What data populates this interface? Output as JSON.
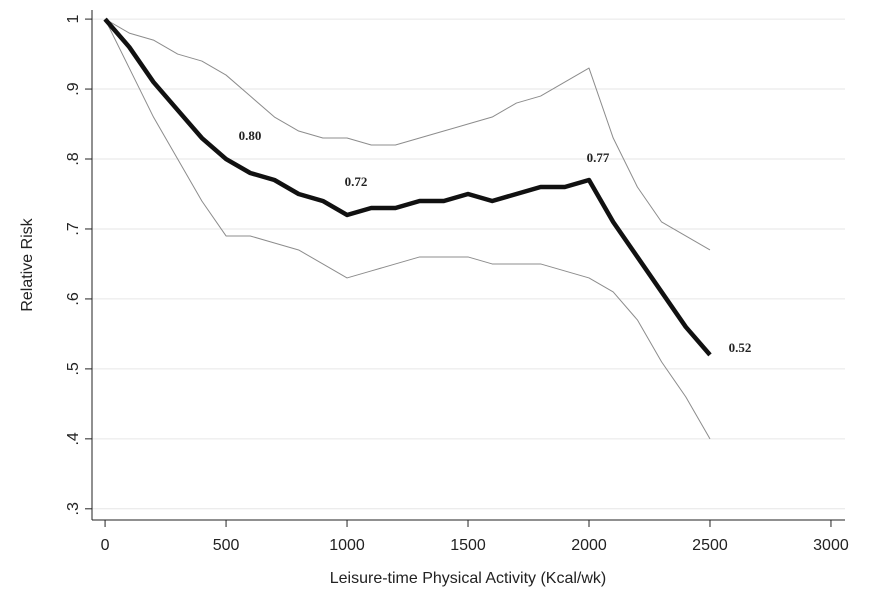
{
  "chart_data": {
    "type": "line",
    "x_label": "Leisure-time Physical Activity (Kcal/wk)",
    "y_label": "Relative Risk",
    "x": [
      0,
      100,
      200,
      300,
      400,
      500,
      600,
      700,
      800,
      900,
      1000,
      1100,
      1200,
      1300,
      1400,
      1500,
      1600,
      1700,
      1800,
      1900,
      2000,
      2100,
      2200,
      2300,
      2400,
      2500
    ],
    "series": [
      {
        "color": "#8c8c8c",
        "width": 1,
        "values": [
          1.0,
          0.98,
          0.97,
          0.95,
          0.94,
          0.92,
          0.89,
          0.86,
          0.84,
          0.83,
          0.83,
          0.82,
          0.82,
          0.83,
          0.84,
          0.85,
          0.86,
          0.88,
          0.89,
          0.91,
          0.93,
          0.83,
          0.76,
          0.71,
          0.69,
          0.67
        ]
      },
      {
        "color": "#8c8c8c",
        "width": 1,
        "values": [
          1.0,
          0.93,
          0.86,
          0.8,
          0.74,
          0.69,
          0.69,
          0.68,
          0.67,
          0.65,
          0.63,
          0.64,
          0.65,
          0.66,
          0.66,
          0.66,
          0.65,
          0.65,
          0.65,
          0.64,
          0.63,
          0.61,
          0.57,
          0.51,
          0.46,
          0.4
        ]
      },
      {
        "color": "#111111",
        "width": 4.5,
        "values": [
          1.0,
          0.96,
          0.91,
          0.87,
          0.83,
          0.8,
          0.78,
          0.77,
          0.75,
          0.74,
          0.72,
          0.73,
          0.73,
          0.74,
          0.74,
          0.75,
          0.74,
          0.75,
          0.76,
          0.76,
          0.77,
          0.71,
          0.66,
          0.61,
          0.56,
          0.52
        ]
      }
    ],
    "annotations": [
      "0.80",
      "0.72",
      "0.77",
      "0.52"
    ],
    "xlim": [
      -54,
      3058
    ],
    "ylim": [
      0.284,
      1.013
    ],
    "xticks": [
      0,
      500,
      1000,
      1500,
      2000,
      2500,
      3000
    ],
    "yticks": [
      1,
      {
        "value": 0.9,
        "label": ".9"
      },
      {
        "value": 0.8,
        "label": ".8"
      },
      {
        "value": 0.7,
        "label": ".7"
      },
      {
        "value": 0.6,
        "label": ".6"
      },
      {
        "value": 0.5,
        "label": ".5"
      },
      {
        "value": 0.4,
        "label": ".4"
      },
      {
        "value": 0.3,
        "label": ".3"
      }
    ],
    "grid": true
  }
}
